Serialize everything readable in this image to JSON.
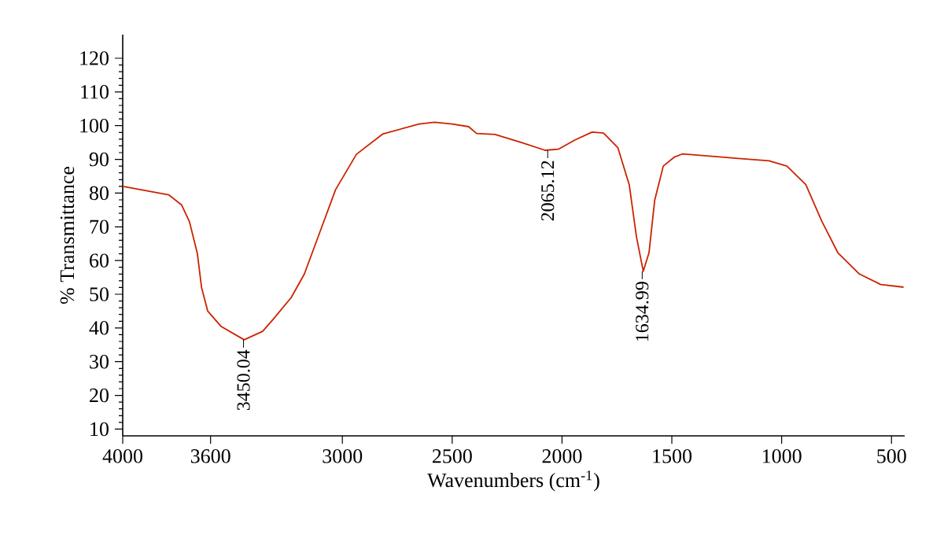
{
  "chart_data": {
    "type": "line",
    "xlabel": "Wavenumbers (cm$^{-1}$)",
    "ylabel": "% Transmittance",
    "x": [
      4000,
      3791,
      3732,
      3696,
      3660,
      3641,
      3613,
      3553,
      3447,
      3363,
      3316,
      3233,
      3173,
      3102,
      3031,
      2936,
      2817,
      2651,
      2580,
      2500,
      2425,
      2389,
      2305,
      2185,
      2077,
      2017,
      1940,
      1863,
      1811,
      1746,
      1694,
      1661,
      1630,
      1604,
      1578,
      1539,
      1488,
      1453,
      1407,
      1198,
      1058,
      976,
      890,
      817,
      744,
      646,
      549,
      445
    ],
    "series": [
      {
        "color": "#cc2200",
        "values": [
          82,
          79.5,
          76.5,
          71.5,
          62,
          52,
          45,
          40.5,
          36.5,
          39,
          42.5,
          49,
          56,
          68.5,
          81,
          91.5,
          97.5,
          100.5,
          101,
          100.5,
          99.7,
          97.7,
          97.4,
          95,
          92.7,
          93,
          95.8,
          98.1,
          97.8,
          93.5,
          82.5,
          67,
          56.8,
          62.3,
          77.9,
          88,
          90.7,
          91.6,
          91.4,
          90.3,
          89.6,
          88,
          82.5,
          71.6,
          62.3,
          56,
          52.9,
          52.1
        ]
      }
    ],
    "xlim": [
      4000,
      440
    ],
    "ylim": [
      8,
      127
    ],
    "xticks": [
      4000,
      3600,
      3000,
      2500,
      2000,
      1500,
      1000,
      500
    ],
    "yticks": [
      10,
      20,
      30,
      40,
      50,
      60,
      70,
      80,
      90,
      100,
      110,
      120
    ],
    "annotations": [
      {
        "text": "3450.04",
        "x": 3450.04,
        "y": 36.5
      },
      {
        "text": "2065.12",
        "x": 2065.12,
        "y": 92.7
      },
      {
        "text": "1634.99",
        "x": 1634.99,
        "y": 56.8
      }
    ],
    "grid": false,
    "marker": "none",
    "line_style": "solid"
  }
}
